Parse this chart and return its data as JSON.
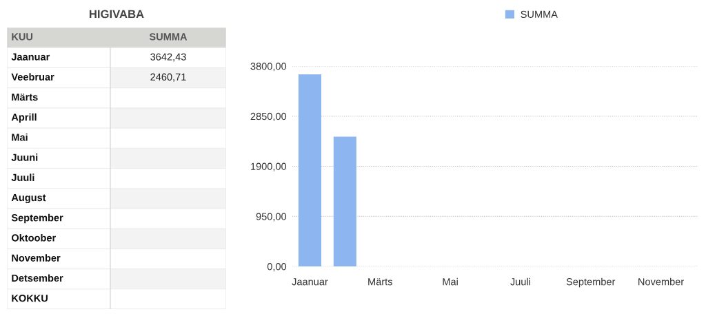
{
  "chart_data": [
    {
      "type": "other",
      "title": "HIGIVABA",
      "annotations": [
        "KUU"
      ],
      "categories": [
        "Jaanuar",
        "Veebruar",
        "Märts",
        "Aprill",
        "Mai",
        "Juuni",
        "Juuli",
        "August",
        "September",
        "Oktoober",
        "November",
        "Detsember",
        "KOKKU"
      ],
      "series": [
        {
          "name": "SUMMA",
          "values": [
            3642.43,
            2460.71,
            null,
            null,
            null,
            null,
            null,
            null,
            null,
            null,
            null,
            null,
            null
          ],
          "value_labels": [
            "3642,43",
            "2460,71",
            null,
            null,
            null,
            null,
            null,
            null,
            null,
            null,
            null,
            null,
            null
          ]
        }
      ]
    },
    {
      "type": "bar",
      "categories": [
        "Jaanuar",
        null,
        "Märts",
        null,
        "Mai",
        null,
        "Juuli",
        null,
        "September",
        null,
        "November",
        null
      ],
      "series": [
        {
          "name": "SUMMA",
          "color": "#8db5f0",
          "values": [
            3642.43,
            2460.71,
            null,
            null,
            null,
            null,
            null,
            null,
            null,
            null,
            null,
            null
          ]
        }
      ],
      "ylim": [
        0,
        3800
      ],
      "yticks": [
        {
          "value": 0,
          "label": "0,00"
        },
        {
          "value": 950,
          "label": "950,00"
        },
        {
          "value": 1900,
          "label": "1900,00"
        },
        {
          "value": 2850,
          "label": "2850,00"
        },
        {
          "value": 3800,
          "label": "3800,00"
        }
      ],
      "grid": "y",
      "legend": "top"
    }
  ]
}
